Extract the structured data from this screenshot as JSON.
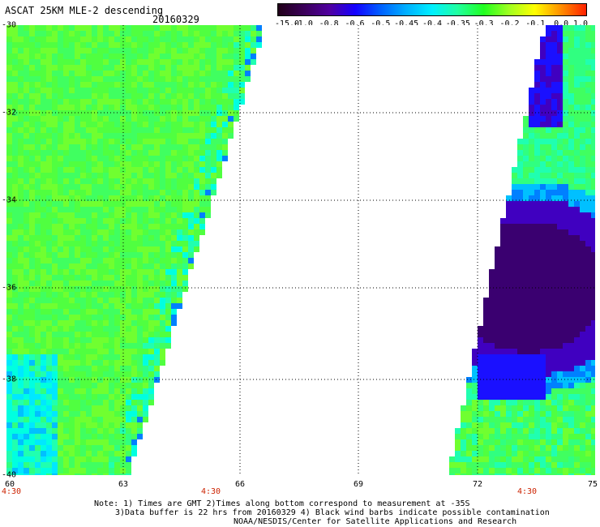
{
  "header": {
    "title": "ASCAT 25KM MLE-2 descending",
    "date": "20160329"
  },
  "colorbar": {
    "labels": [
      "-15.0",
      "-1.0",
      "-0.8",
      "-0.6",
      "-0.5",
      "-0.45",
      "-0.4",
      "-0.35",
      "-0.3",
      "-0.2",
      "-0.1",
      "0.0",
      "1.0"
    ],
    "colors": [
      "#200018",
      "#3a0058",
      "#5000a0",
      "#1400ff",
      "#0060ff",
      "#00b0ff",
      "#00f0ff",
      "#20ffa0",
      "#20ff20",
      "#a0ff20",
      "#ffff00",
      "#ff9000",
      "#ff2000"
    ]
  },
  "axes": {
    "lat_labels": [
      "-30",
      "-32",
      "-34",
      "-36",
      "-38",
      "-40"
    ],
    "lon_labels": [
      "60",
      "63",
      "66",
      "69",
      "72",
      "75"
    ],
    "time_labels": [
      "4:30",
      "4:30",
      "4:30"
    ]
  },
  "notes": {
    "line1": "Note: 1) Times are GMT 2)Times along bottom correspond to measurement at -35S",
    "line2": "3)Data buffer is 22 hrs from 20160329 4) Black wind barbs indicate possible contamination",
    "line3": "NOAA/NESDIS/Center for Satellite Applications and Research"
  }
}
